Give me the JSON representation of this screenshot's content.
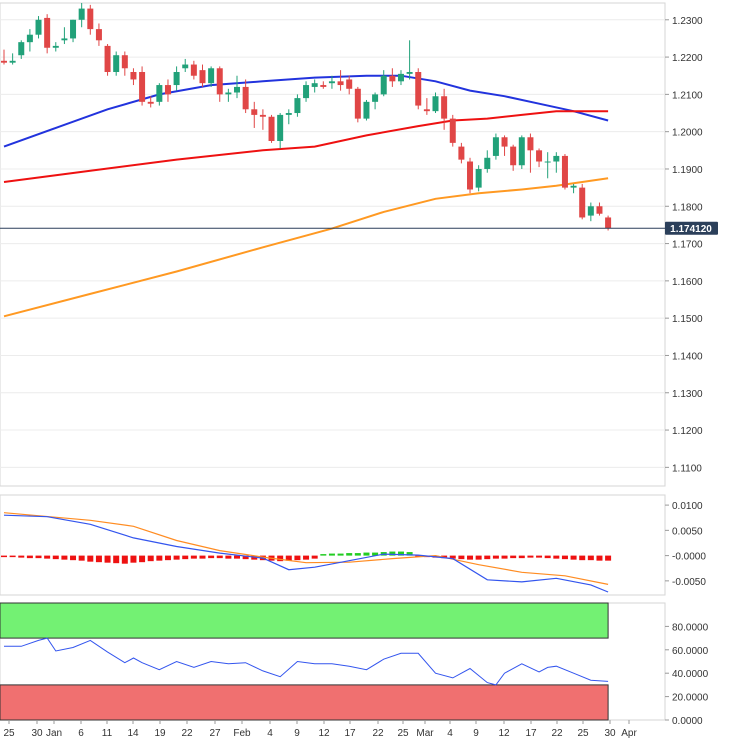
{
  "current_price_label": "1.174120",
  "colors": {
    "up": "#21a179",
    "down": "#e04646",
    "ma_fast": "#2233dd",
    "ma_mid": "#ee1111",
    "ma_slow": "#ff9922",
    "macd_line": "#3355ee",
    "macd_signal": "#ff8c22",
    "hist_pos": "#22cc22",
    "hist_neg": "#ee1111",
    "ob_zone": "#73f173",
    "os_zone": "#f07070",
    "rsi": "#3355ee",
    "price_line": "#2b3f5a"
  },
  "chart_data": [
    {
      "type": "candlestick",
      "title": "",
      "ylim": [
        1.105,
        1.2345
      ],
      "yticks": [
        "1.2300",
        "1.2200",
        "1.2100",
        "1.2000",
        "1.1900",
        "1.1800",
        "1.1700",
        "1.1600",
        "1.1500",
        "1.1400",
        "1.1300",
        "1.1200",
        "1.1100"
      ],
      "x_labels": [
        "25",
        "30",
        "Jan",
        "6",
        "11",
        "14",
        "19",
        "22",
        "27",
        "Feb",
        "4",
        "9",
        "12",
        "17",
        "22",
        "25",
        "Mar",
        "4",
        "9",
        "12",
        "17",
        "22",
        "25",
        "30",
        "Apr"
      ],
      "last_price": 1.17412,
      "candles": [
        [
          1.219,
          1.222,
          1.218,
          1.2185
        ],
        [
          1.2185,
          1.221,
          1.218,
          1.219
        ],
        [
          1.2205,
          1.2245,
          1.2195,
          1.224
        ],
        [
          1.224,
          1.2275,
          1.2215,
          1.226
        ],
        [
          1.226,
          1.231,
          1.225,
          1.23
        ],
        [
          1.2305,
          1.2315,
          1.221,
          1.2225
        ],
        [
          1.2225,
          1.224,
          1.2215,
          1.223
        ],
        [
          1.2245,
          1.228,
          1.2235,
          1.225
        ],
        [
          1.225,
          1.23,
          1.224,
          1.23
        ],
        [
          1.23,
          1.2345,
          1.228,
          1.233
        ],
        [
          1.233,
          1.234,
          1.226,
          1.2275
        ],
        [
          1.2275,
          1.229,
          1.223,
          1.2245
        ],
        [
          1.223,
          1.2235,
          1.215,
          1.216
        ],
        [
          1.216,
          1.2215,
          1.215,
          1.2205
        ],
        [
          1.2205,
          1.2215,
          1.215,
          1.217
        ],
        [
          1.216,
          1.217,
          1.2125,
          1.214
        ],
        [
          1.216,
          1.2175,
          1.207,
          1.208
        ],
        [
          1.208,
          1.2095,
          1.2065,
          1.2075
        ],
        [
          1.208,
          1.213,
          1.207,
          1.2125
        ],
        [
          1.2125,
          1.214,
          1.208,
          1.21
        ],
        [
          1.2125,
          1.2175,
          1.211,
          1.216
        ],
        [
          1.217,
          1.2195,
          1.216,
          1.218
        ],
        [
          1.218,
          1.219,
          1.214,
          1.215
        ],
        [
          1.2165,
          1.218,
          1.212,
          1.213
        ],
        [
          1.213,
          1.2175,
          1.212,
          1.217
        ],
        [
          1.217,
          1.2175,
          1.208,
          1.21
        ],
        [
          1.21,
          1.2115,
          1.208,
          1.2105
        ],
        [
          1.2105,
          1.215,
          1.209,
          1.212
        ],
        [
          1.212,
          1.214,
          1.205,
          1.206
        ],
        [
          1.206,
          1.208,
          1.201,
          1.2045
        ],
        [
          1.2045,
          1.206,
          1.2005,
          1.204
        ],
        [
          1.204,
          1.2045,
          1.197,
          1.1975
        ],
        [
          1.1975,
          1.205,
          1.1955,
          1.2045
        ],
        [
          1.2045,
          1.206,
          1.202,
          1.205
        ],
        [
          1.205,
          1.21,
          1.204,
          1.209
        ],
        [
          1.209,
          1.2135,
          1.208,
          1.2125
        ],
        [
          1.212,
          1.214,
          1.2105,
          1.213
        ],
        [
          1.2125,
          1.2135,
          1.2115,
          1.212
        ],
        [
          1.213,
          1.215,
          1.2115,
          1.2135
        ],
        [
          1.2135,
          1.2165,
          1.211,
          1.2125
        ],
        [
          1.214,
          1.215,
          1.21,
          1.2115
        ],
        [
          1.2115,
          1.212,
          1.2025,
          1.2035
        ],
        [
          1.2035,
          1.2085,
          1.203,
          1.208
        ],
        [
          1.208,
          1.2105,
          1.206,
          1.21
        ],
        [
          1.21,
          1.2165,
          1.2095,
          1.215
        ],
        [
          1.215,
          1.217,
          1.212,
          1.2135
        ],
        [
          1.2135,
          1.2165,
          1.2125,
          1.2155
        ],
        [
          1.2155,
          1.2245,
          1.214,
          1.216
        ],
        [
          1.216,
          1.217,
          1.206,
          1.207
        ],
        [
          1.206,
          1.209,
          1.2045,
          1.2055
        ],
        [
          1.2055,
          1.2105,
          1.205,
          1.2095
        ],
        [
          1.2095,
          1.2115,
          1.2005,
          1.2035
        ],
        [
          1.2035,
          1.2045,
          1.196,
          1.197
        ],
        [
          1.196,
          1.197,
          1.1915,
          1.1925
        ],
        [
          1.192,
          1.193,
          1.1835,
          1.1845
        ],
        [
          1.185,
          1.191,
          1.184,
          1.19
        ],
        [
          1.19,
          1.195,
          1.189,
          1.193
        ],
        [
          1.1935,
          1.1995,
          1.1925,
          1.1985
        ],
        [
          1.1985,
          1.199,
          1.1935,
          1.196
        ],
        [
          1.196,
          1.1965,
          1.1895,
          1.191
        ],
        [
          1.191,
          1.199,
          1.19,
          1.1985
        ],
        [
          1.1985,
          1.1995,
          1.189,
          1.195
        ],
        [
          1.195,
          1.1955,
          1.1905,
          1.192
        ],
        [
          1.192,
          1.1945,
          1.1875,
          1.192
        ],
        [
          1.192,
          1.1945,
          1.189,
          1.1935
        ],
        [
          1.1935,
          1.194,
          1.1845,
          1.185
        ],
        [
          1.185,
          1.186,
          1.1835,
          1.1855
        ],
        [
          1.185,
          1.186,
          1.1765,
          1.177
        ],
        [
          1.1775,
          1.181,
          1.176,
          1.18
        ],
        [
          1.18,
          1.181,
          1.1775,
          1.178
        ],
        [
          1.177,
          1.1775,
          1.1735,
          1.1741
        ]
      ],
      "series": [
        {
          "name": "",
          "color_key": "ma_fast",
          "values": [
            [
              0,
              1.196
            ],
            [
              6,
              1.201
            ],
            [
              12,
              1.206
            ],
            [
              18,
              1.21
            ],
            [
              24,
              1.2125
            ],
            [
              30,
              1.2135
            ],
            [
              36,
              1.2145
            ],
            [
              42,
              1.215
            ],
            [
              46,
              1.215
            ],
            [
              50,
              1.2135
            ],
            [
              54,
              1.211
            ],
            [
              58,
              1.2095
            ],
            [
              62,
              1.2075
            ],
            [
              66,
              1.2055
            ],
            [
              70,
              1.203
            ]
          ]
        },
        {
          "name": "",
          "color_key": "ma_mid",
          "values": [
            [
              0,
              1.1865
            ],
            [
              10,
              1.1895
            ],
            [
              20,
              1.1925
            ],
            [
              30,
              1.195
            ],
            [
              36,
              1.196
            ],
            [
              42,
              1.199
            ],
            [
              48,
              1.2015
            ],
            [
              52,
              1.203
            ],
            [
              56,
              1.2035
            ],
            [
              60,
              1.2045
            ],
            [
              64,
              1.2055
            ],
            [
              70,
              1.2055
            ]
          ]
        },
        {
          "name": "",
          "color_key": "ma_slow",
          "values": [
            [
              0,
              1.1505
            ],
            [
              10,
              1.1565
            ],
            [
              20,
              1.1625
            ],
            [
              30,
              1.169
            ],
            [
              38,
              1.174
            ],
            [
              44,
              1.1785
            ],
            [
              50,
              1.182
            ],
            [
              55,
              1.1835
            ],
            [
              60,
              1.1845
            ],
            [
              64,
              1.1855
            ],
            [
              70,
              1.1875
            ]
          ]
        }
      ]
    },
    {
      "type": "macd",
      "ylim": [
        -0.0078,
        0.012
      ],
      "yticks": [
        "0.0100",
        "0.0050",
        "-0.0000",
        "-0.0050"
      ],
      "line": [
        [
          0,
          0.008
        ],
        [
          5,
          0.0077
        ],
        [
          10,
          0.0062
        ],
        [
          15,
          0.0035
        ],
        [
          20,
          0.0018
        ],
        [
          25,
          0.0005
        ],
        [
          30,
          -0.0005
        ],
        [
          33,
          -0.0028
        ],
        [
          36,
          -0.0023
        ],
        [
          40,
          -0.001
        ],
        [
          44,
          0.0003
        ],
        [
          48,
          0.0001
        ],
        [
          52,
          -0.0006
        ],
        [
          56,
          -0.0048
        ],
        [
          60,
          -0.0052
        ],
        [
          64,
          -0.0045
        ],
        [
          68,
          -0.0058
        ],
        [
          70,
          -0.0072
        ]
      ],
      "signal": [
        [
          0,
          0.0085
        ],
        [
          10,
          0.007
        ],
        [
          15,
          0.0058
        ],
        [
          20,
          0.003
        ],
        [
          25,
          0.001
        ],
        [
          30,
          -0.0003
        ],
        [
          35,
          -0.0014
        ],
        [
          40,
          -0.0013
        ],
        [
          45,
          -0.0006
        ],
        [
          50,
          0.0
        ],
        [
          55,
          -0.0018
        ],
        [
          60,
          -0.0033
        ],
        [
          65,
          -0.004
        ],
        [
          70,
          -0.0057
        ]
      ],
      "histogram": [
        -0.0003,
        -0.0003,
        -0.0004,
        -0.0005,
        -0.0005,
        -0.0006,
        -0.0007,
        -0.0008,
        -0.0009,
        -0.001,
        -0.0012,
        -0.0013,
        -0.0014,
        -0.0015,
        -0.0016,
        -0.0014,
        -0.0013,
        -0.0011,
        -0.001,
        -0.0009,
        -0.0008,
        -0.0007,
        -0.0006,
        -0.0006,
        -0.0005,
        -0.0005,
        -0.0006,
        -0.0006,
        -0.0007,
        -0.0008,
        -0.0009,
        -0.001,
        -0.0011,
        -0.001,
        -0.0009,
        -0.0008,
        -0.0006,
        0.0003,
        0.0004,
        0.0004,
        0.0005,
        0.0005,
        0.0006,
        0.0006,
        0.0007,
        0.0008,
        0.0008,
        0.0007,
        -0.0002,
        -0.0003,
        -0.0004,
        -0.0005,
        -0.0006,
        -0.0007,
        -0.0008,
        -0.0008,
        -0.0007,
        -0.0006,
        -0.0006,
        -0.0005,
        -0.0005,
        -0.0004,
        -0.0004,
        -0.0005,
        -0.0006,
        -0.0007,
        -0.0008,
        -0.0009,
        -0.0009,
        -0.001,
        -0.001
      ]
    },
    {
      "type": "line",
      "ylim": [
        0,
        100
      ],
      "yticks": [
        "80.0000",
        "60.0000",
        "40.0000",
        "20.0000",
        "0.0000"
      ],
      "overbought_band": [
        70,
        100
      ],
      "oversold_band": [
        0,
        30
      ],
      "values": [
        [
          0,
          63
        ],
        [
          2,
          63
        ],
        [
          4,
          68
        ],
        [
          5,
          70
        ],
        [
          6,
          59
        ],
        [
          8,
          62
        ],
        [
          10,
          68
        ],
        [
          12,
          58
        ],
        [
          14,
          49
        ],
        [
          15,
          53
        ],
        [
          16,
          49
        ],
        [
          18,
          43
        ],
        [
          20,
          50
        ],
        [
          22,
          45
        ],
        [
          24,
          50
        ],
        [
          26,
          48
        ],
        [
          28,
          49
        ],
        [
          30,
          42
        ],
        [
          32,
          37
        ],
        [
          34,
          50
        ],
        [
          36,
          48
        ],
        [
          38,
          48
        ],
        [
          40,
          46
        ],
        [
          42,
          43
        ],
        [
          44,
          52
        ],
        [
          46,
          57
        ],
        [
          48,
          57
        ],
        [
          50,
          40
        ],
        [
          52,
          36
        ],
        [
          54,
          44
        ],
        [
          56,
          32
        ],
        [
          57,
          30
        ],
        [
          58,
          40
        ],
        [
          60,
          48
        ],
        [
          62,
          41
        ],
        [
          63,
          45
        ],
        [
          64,
          46
        ],
        [
          66,
          40
        ],
        [
          68,
          34
        ],
        [
          70,
          33
        ]
      ]
    }
  ]
}
